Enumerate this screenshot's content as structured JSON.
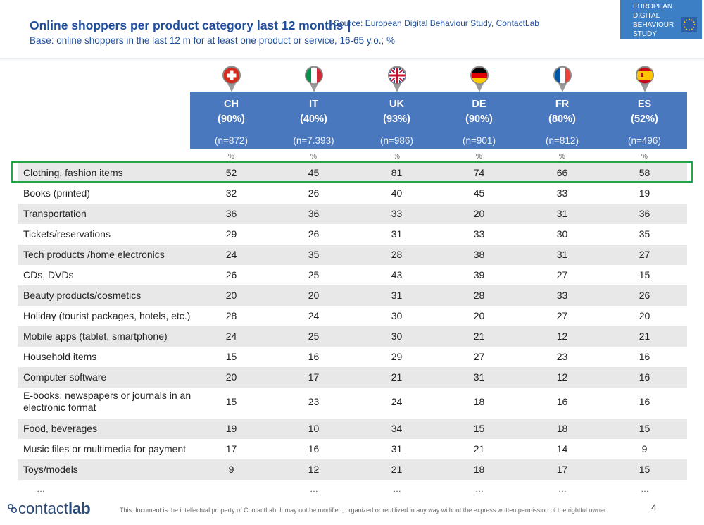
{
  "header": {
    "title": "Online shoppers  per product category last 12 months",
    "divider": "|",
    "source": "Source: European Digital Behaviour Study, ContactLab",
    "subtitle": "Base: online shoppers in the last 12 m for at least one product or service, 16-65 y.o.; %"
  },
  "eu_logo": {
    "lines": [
      "EUROPEAN",
      "DIGITAL",
      "BEHAVIOUR",
      "STUDY"
    ],
    "color": "#3c7fc4"
  },
  "columns": [
    {
      "code": "CH",
      "pct": "(90%)",
      "n": "(n=872)",
      "flag": "switzerland-flag-icon",
      "unit": "%"
    },
    {
      "code": "IT",
      "pct": "(40%)",
      "n": "(n=7.393)",
      "flag": "italy-flag-icon",
      "unit": "%"
    },
    {
      "code": "UK",
      "pct": "(93%)",
      "n": "(n=986)",
      "flag": "uk-flag-icon",
      "unit": "%"
    },
    {
      "code": "DE",
      "pct": "(90%)",
      "n": "(n=901)",
      "flag": "germany-flag-icon",
      "unit": "%"
    },
    {
      "code": "FR",
      "pct": "(80%)",
      "n": "(n=812)",
      "flag": "france-flag-icon",
      "unit": "%"
    },
    {
      "code": "ES",
      "pct": "(52%)",
      "n": "(n=496)",
      "flag": "spain-flag-icon",
      "unit": "%"
    }
  ],
  "rows": [
    {
      "label": "Clothing, fashion items",
      "values": [
        "52",
        "45",
        "81",
        "74",
        "66",
        "58"
      ]
    },
    {
      "label": "Books (printed)",
      "values": [
        "32",
        "26",
        "40",
        "45",
        "33",
        "19"
      ]
    },
    {
      "label": "Transportation",
      "values": [
        "36",
        "36",
        "33",
        "20",
        "31",
        "36"
      ]
    },
    {
      "label": "Tickets/reservations",
      "values": [
        "29",
        "26",
        "31",
        "33",
        "30",
        "35"
      ]
    },
    {
      "label": "Tech products /home electronics",
      "values": [
        "24",
        "35",
        "28",
        "38",
        "31",
        "27"
      ]
    },
    {
      "label": "CDs, DVDs",
      "values": [
        "26",
        "25",
        "43",
        "39",
        "27",
        "15"
      ]
    },
    {
      "label": "Beauty products/cosmetics",
      "values": [
        "20",
        "20",
        "31",
        "28",
        "33",
        "26"
      ]
    },
    {
      "label": "Holiday (tourist packages, hotels, etc.)",
      "values": [
        "28",
        "24",
        "30",
        "20",
        "27",
        "20"
      ]
    },
    {
      "label": "Mobile apps (tablet, smartphone)",
      "values": [
        "24",
        "25",
        "30",
        "21",
        "12",
        "21"
      ]
    },
    {
      "label": "Household items",
      "values": [
        "15",
        "16",
        "29",
        "27",
        "23",
        "16"
      ]
    },
    {
      "label": "Computer software",
      "values": [
        "20",
        "17",
        "21",
        "31",
        "12",
        "16"
      ]
    },
    {
      "label": "E-books, newspapers or journals in an electronic format",
      "values": [
        "15",
        "23",
        "24",
        "18",
        "16",
        "16"
      ]
    },
    {
      "label": "Food, beverages",
      "values": [
        "19",
        "10",
        "34",
        "15",
        "18",
        "15"
      ]
    },
    {
      "label": "Music files or multimedia for payment",
      "values": [
        "17",
        "16",
        "31",
        "21",
        "14",
        "9"
      ]
    },
    {
      "label": "Toys/models",
      "values": [
        "9",
        "12",
        "21",
        "18",
        "17",
        "15"
      ]
    }
  ],
  "ellipsis": "…",
  "footer": {
    "logo_contact": "contact",
    "logo_lab": "lab",
    "notice": "This document is the intellectual property of ContactLab. It may not be modified, organized or reutilized in any way without the express written permission of the rightful owner.",
    "page_number": "4"
  },
  "colors": {
    "title": "#1f4e9c",
    "header_bg": "#4a78bf",
    "highlight": "#22a64a",
    "row_shade": "#e8e8e8"
  }
}
